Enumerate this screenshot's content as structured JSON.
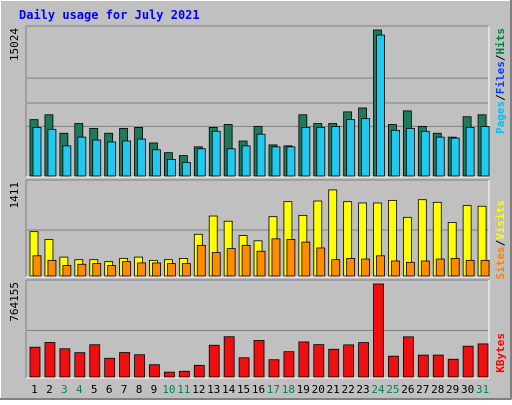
{
  "colors": {
    "page_bg": "#c0c0c0",
    "plot_bg": "#c0c0c0",
    "title": "#0000ff",
    "pages": "#00c0ff",
    "files": "#0040ff",
    "hits": "#008040",
    "hits_bar": "#1e7a5a",
    "pages_bar": "#22c8f0",
    "visits": "#ffff00",
    "sites": "#ff8000",
    "visits_bar": "#ffff00",
    "sites_bar": "#ff8c00",
    "kbytes": "#ff0000",
    "kbytes_bar": "#ee1010",
    "weekend_day": "#00805c",
    "weekday_day": "#000000"
  },
  "chart_data": {
    "title": "Daily usage for July 2021",
    "days": [
      1,
      2,
      3,
      4,
      5,
      6,
      7,
      8,
      9,
      10,
      11,
      12,
      13,
      14,
      15,
      16,
      17,
      18,
      19,
      20,
      21,
      22,
      23,
      24,
      25,
      26,
      27,
      28,
      29,
      30,
      31
    ],
    "weekend_days": [
      3,
      4,
      10,
      11,
      17,
      18,
      24,
      25,
      31
    ],
    "panels": [
      {
        "type": "bar",
        "name": "hits_files_pages",
        "ymax_label": "15024",
        "ymax": 15024,
        "legend": {
          "pages": "Pages",
          "files": "Files",
          "hits": "Hits",
          "sep": "/"
        },
        "series": [
          {
            "name": "Hits",
            "values": [
              5800,
              6300,
              4400,
              5400,
              4900,
              4400,
              4900,
              5000,
              3400,
              2400,
              2100,
              3000,
              5000,
              5300,
              3600,
              5100,
              3200,
              3100,
              6300,
              5400,
              5400,
              6600,
              7000,
              15024,
              5300,
              6700,
              5100,
              4400,
              4000,
              6100,
              6300
            ]
          },
          {
            "name": "Files",
            "values": [
              5000,
              4800,
              3100,
              4000,
              3700,
              3500,
              3600,
              3800,
              2700,
              1700,
              1400,
              2800,
              4600,
              2800,
              3100,
              4300,
              3000,
              3000,
              5000,
              5000,
              5100,
              5800,
              5900,
              14500,
              4700,
              4900,
              4600,
              4000,
              3900,
              5000,
              5100
            ]
          },
          {
            "name": "Pages",
            "values": [
              5000,
              4800,
              3100,
              4000,
              3700,
              3500,
              3600,
              3800,
              2700,
              1700,
              1400,
              2800,
              4600,
              2800,
              3100,
              4300,
              3000,
              3000,
              5000,
              5000,
              5100,
              5800,
              5900,
              14500,
              4700,
              4900,
              4600,
              4000,
              3900,
              5000,
              5100
            ]
          }
        ]
      },
      {
        "type": "bar",
        "name": "visits_sites",
        "ymax_label": "1411",
        "ymax": 1411,
        "legend": {
          "sites": "Sites",
          "visits": "Visits",
          "sep": "/"
        },
        "series": [
          {
            "name": "Visits",
            "values": [
              680,
              560,
              290,
              250,
              250,
              220,
              270,
              290,
              240,
              250,
              270,
              640,
              920,
              840,
              620,
              540,
              910,
              1140,
              930,
              1150,
              1320,
              1140,
              1120,
              1120,
              1160,
              900,
              1170,
              1130,
              820,
              1080,
              1070
            ]
          },
          {
            "name": "Sites",
            "values": [
              310,
              240,
              160,
              180,
              190,
              160,
              220,
              200,
              200,
              190,
              190,
              470,
              360,
              420,
              470,
              380,
              570,
              560,
              520,
              430,
              250,
              270,
              260,
              310,
              230,
              210,
              230,
              260,
              270,
              240,
              240
            ]
          }
        ]
      },
      {
        "type": "bar",
        "name": "kbytes",
        "ymax_label": "764155",
        "ymax": 764155,
        "legend": {
          "kbytes": "KBytes"
        },
        "series": [
          {
            "name": "KBytes",
            "values": [
              245000,
              284000,
              232000,
              200000,
              265000,
              154000,
              201000,
              183000,
              101000,
              40000,
              47000,
              96000,
              261000,
              331000,
              158000,
              300000,
              142000,
              208000,
              288000,
              266000,
              228000,
              264000,
              283000,
              764155,
              171000,
              330000,
              180000,
              180000,
              146000,
              253000,
              272000
            ]
          }
        ]
      }
    ]
  }
}
